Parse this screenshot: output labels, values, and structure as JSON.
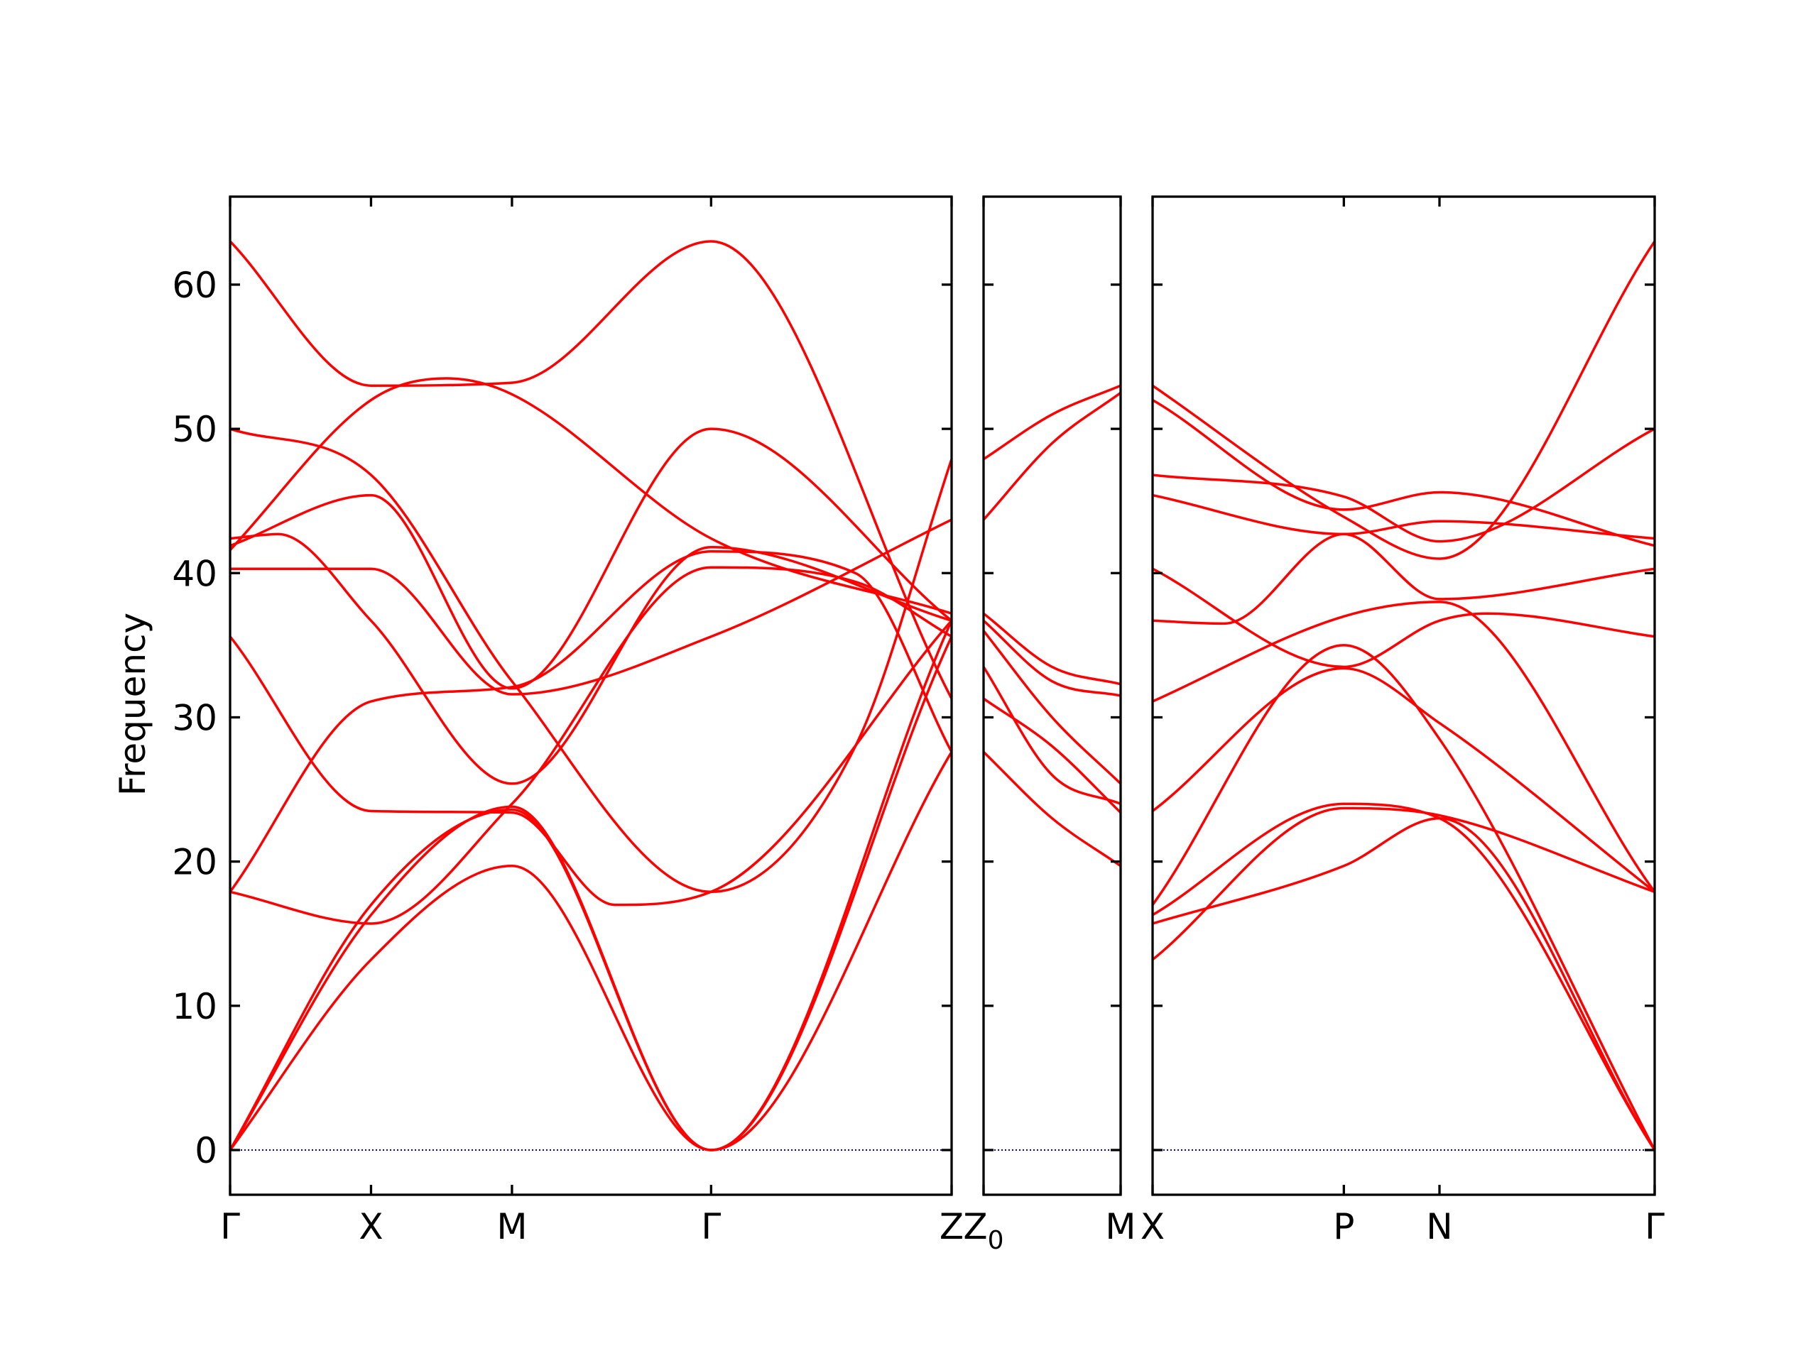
{
  "chart_data": {
    "type": "line",
    "title": "",
    "ylabel": "Frequency",
    "ylim": [
      -3.1,
      66.1
    ],
    "yticks": [
      0,
      10,
      20,
      30,
      40,
      50,
      60
    ],
    "grid": false,
    "legend": "none",
    "colors": {
      "bands": "#ff0000",
      "zero_line": "#0000cc",
      "frame": "#000000"
    },
    "panels": [
      {
        "name": "panel-1",
        "path": [
          "Γ",
          "X",
          "M",
          "Γ",
          "Z"
        ],
        "xticks": [
          {
            "x": 0.0,
            "label": "Γ"
          },
          {
            "x": 0.293,
            "label": "X"
          },
          {
            "x": 0.586,
            "label": "M"
          },
          {
            "x": 1.0,
            "label": "Γ"
          },
          {
            "x": 1.5,
            "label": "Z"
          }
        ],
        "xlim": [
          0,
          1.5
        ],
        "bands": [
          {
            "x": [
              0,
              0.293,
              0.586,
              1.0,
              1.5
            ],
            "y": [
              63.0,
              53.0,
              53.2,
              63.0,
              31.3
            ]
          },
          {
            "x": [
              0,
              0.293,
              0.45,
              0.586,
              1.0,
              1.5
            ],
            "y": [
              41.6,
              52.0,
              53.5,
              52.4,
              42.4,
              37.2
            ]
          },
          {
            "x": [
              0,
              0.293,
              0.586,
              1.0,
              1.3,
              1.5
            ],
            "y": [
              50.0,
              46.8,
              32.5,
              17.9,
              28.0,
              47.9
            ]
          },
          {
            "x": [
              0,
              0.293,
              0.586,
              1.0,
              1.5
            ],
            "y": [
              41.9,
              45.4,
              32.0,
              50.0,
              36.7
            ]
          },
          {
            "x": [
              0,
              0.1,
              0.293,
              0.586,
              1.0,
              1.5
            ],
            "y": [
              42.4,
              42.7,
              36.7,
              25.4,
              41.8,
              36.7
            ]
          },
          {
            "x": [
              0,
              0.293,
              0.586,
              1.0,
              1.5
            ],
            "y": [
              40.3,
              40.3,
              31.6,
              35.6,
              43.7
            ]
          },
          {
            "x": [
              0,
              0.293,
              0.586,
              0.8,
              1.0,
              1.5
            ],
            "y": [
              35.6,
              23.5,
              23.4,
              17.0,
              17.9,
              36.7
            ]
          },
          {
            "x": [
              0,
              0.293,
              0.586,
              1.0,
              1.3,
              1.5
            ],
            "y": [
              17.9,
              31.1,
              32.1,
              41.5,
              40.0,
              27.6
            ]
          },
          {
            "x": [
              0,
              0.293,
              0.586,
              1.0,
              1.3,
              1.5
            ],
            "y": [
              17.9,
              15.7,
              24.0,
              40.4,
              39.4,
              35.6
            ]
          },
          {
            "x": [
              0,
              0.293,
              0.586,
              1.0,
              1.5
            ],
            "y": [
              0,
              17.0,
              23.6,
              0,
              36.7
            ]
          },
          {
            "x": [
              0,
              0.293,
              0.586,
              1.0,
              1.5
            ],
            "y": [
              0,
              16.3,
              23.8,
              0,
              35.6
            ]
          },
          {
            "x": [
              0,
              0.293,
              0.586,
              1.0,
              1.5
            ],
            "y": [
              0,
              13.2,
              19.7,
              0,
              27.6
            ]
          }
        ]
      },
      {
        "name": "panel-2",
        "path": [
          "Z0",
          "M"
        ],
        "xticks": [
          {
            "x": 0.0,
            "label": "Z₀"
          },
          {
            "x": 0.28,
            "label": "M"
          }
        ],
        "xlim": [
          0,
          0.28
        ],
        "bands": [
          {
            "x": [
              0,
              0.14,
              0.28
            ],
            "y": [
              47.9,
              51.0,
              53.0
            ]
          },
          {
            "x": [
              0,
              0.14,
              0.28
            ],
            "y": [
              43.7,
              49.0,
              52.5
            ]
          },
          {
            "x": [
              0,
              0.14,
              0.28
            ],
            "y": [
              37.2,
              33.5,
              32.3
            ]
          },
          {
            "x": [
              0,
              0.14,
              0.28
            ],
            "y": [
              36.7,
              32.5,
              31.5
            ]
          },
          {
            "x": [
              0,
              0.14,
              0.28
            ],
            "y": [
              36.0,
              30.0,
              25.4
            ]
          },
          {
            "x": [
              0,
              0.14,
              0.28
            ],
            "y": [
              33.5,
              26.0,
              24.0
            ]
          },
          {
            "x": [
              0,
              0.14,
              0.28
            ],
            "y": [
              31.3,
              28.0,
              23.4
            ]
          },
          {
            "x": [
              0,
              0.14,
              0.28
            ],
            "y": [
              27.6,
              23.0,
              19.7
            ]
          }
        ]
      },
      {
        "name": "panel-3",
        "path": [
          "X",
          "P",
          "N",
          "Γ"
        ],
        "xticks": [
          {
            "x": 0.0,
            "label": "X"
          },
          {
            "x": 0.4,
            "label": "P"
          },
          {
            "x": 0.6,
            "label": "N"
          },
          {
            "x": 1.05,
            "label": "Γ"
          }
        ],
        "xlim": [
          0,
          1.05
        ],
        "bands": [
          {
            "x": [
              0,
              0.4,
              0.6,
              1.05
            ],
            "y": [
              53.0,
              43.9,
              41.0,
              63.0
            ]
          },
          {
            "x": [
              0,
              0.4,
              0.6,
              1.05
            ],
            "y": [
              52.0,
              44.4,
              45.6,
              41.9
            ]
          },
          {
            "x": [
              0,
              0.4,
              0.6,
              1.05
            ],
            "y": [
              46.8,
              45.3,
              42.2,
              50.0
            ]
          },
          {
            "x": [
              0,
              0.4,
              0.6,
              1.05
            ],
            "y": [
              45.4,
              42.7,
              43.6,
              42.4
            ]
          },
          {
            "x": [
              0,
              0.4,
              0.6,
              0.7,
              1.05
            ],
            "y": [
              40.3,
              33.5,
              36.7,
              37.2,
              35.6
            ]
          },
          {
            "x": [
              0,
              0.15,
              0.4,
              0.6,
              1.05
            ],
            "y": [
              36.7,
              36.5,
              42.7,
              38.2,
              40.3
            ]
          },
          {
            "x": [
              0,
              0.4,
              0.6,
              1.05
            ],
            "y": [
              31.1,
              37.0,
              38.0,
              17.9
            ]
          },
          {
            "x": [
              0,
              0.4,
              0.6,
              1.05
            ],
            "y": [
              23.5,
              33.4,
              29.6,
              17.9
            ]
          },
          {
            "x": [
              0,
              0.4,
              0.6,
              1.05
            ],
            "y": [
              17.0,
              35.0,
              28.5,
              0
            ]
          },
          {
            "x": [
              0,
              0.4,
              0.6,
              1.05
            ],
            "y": [
              16.3,
              24.0,
              23.0,
              0
            ]
          },
          {
            "x": [
              0,
              0.4,
              0.6,
              1.05
            ],
            "y": [
              15.7,
              19.7,
              23.0,
              0
            ]
          },
          {
            "x": [
              0,
              0.4,
              0.6,
              1.05
            ],
            "y": [
              13.2,
              23.7,
              23.2,
              17.9
            ]
          }
        ]
      }
    ]
  }
}
